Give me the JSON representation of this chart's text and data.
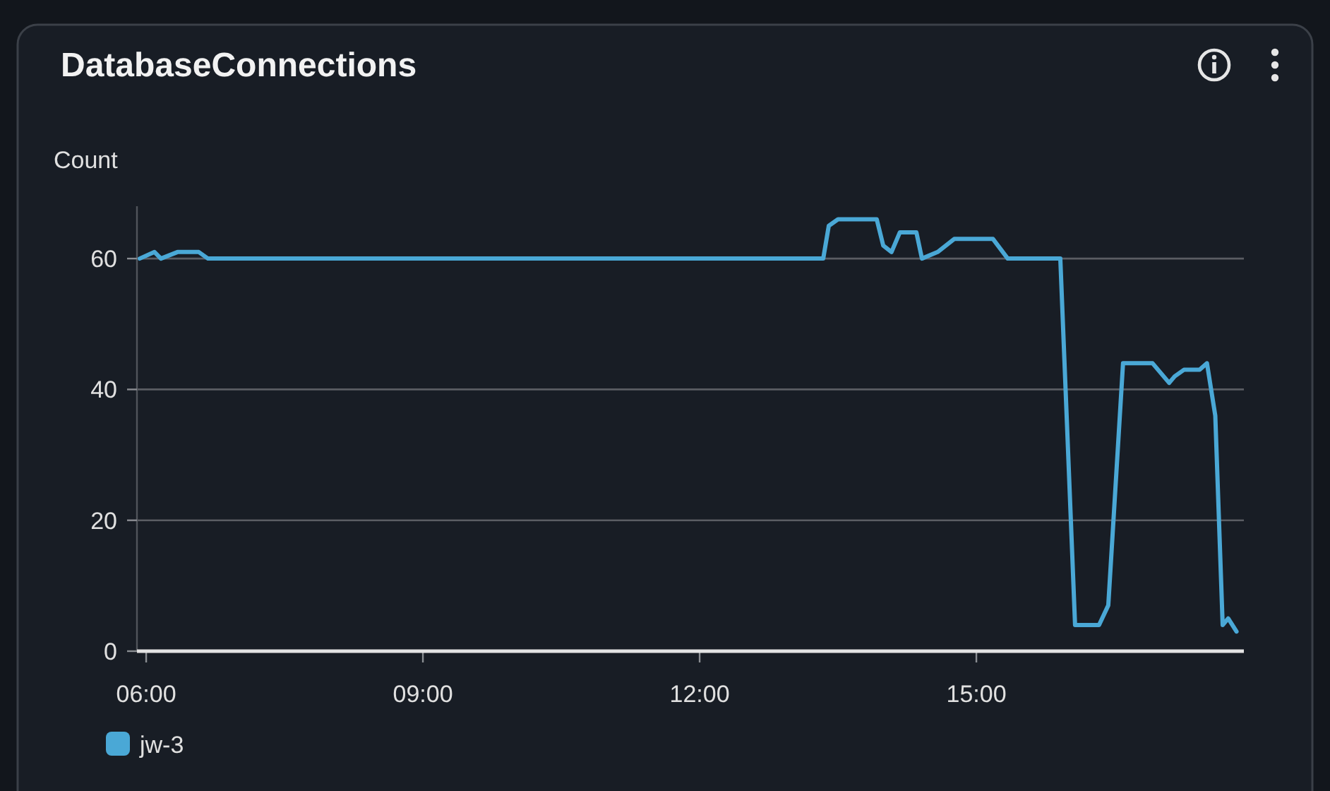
{
  "chart_data": {
    "type": "line",
    "title": "DatabaseConnections",
    "ylabel": "Count",
    "x": [
      5.93,
      6.09,
      6.16,
      6.34,
      6.57,
      6.67,
      13.34,
      13.4,
      13.5,
      13.92,
      13.99,
      14.08,
      14.17,
      14.35,
      14.41,
      14.58,
      14.67,
      14.76,
      15.18,
      15.34,
      15.91,
      16.07,
      16.33,
      16.43,
      16.59,
      16.91,
      17.09,
      17.15,
      17.25,
      17.42,
      17.5,
      17.59,
      17.67,
      17.73,
      17.82
    ],
    "series": [
      {
        "name": "jw-3",
        "color": "#4aa8d6",
        "values": [
          60,
          61,
          60,
          61,
          61,
          60,
          60,
          65,
          66,
          66,
          62,
          61,
          64,
          64,
          60,
          61,
          62,
          63,
          63,
          60,
          60,
          4,
          4,
          7,
          44,
          44,
          41,
          42,
          43,
          43,
          44,
          36,
          4,
          5,
          3
        ]
      }
    ],
    "xlim": [
      5.9,
      17.9
    ],
    "ylim": [
      0,
      68
    ],
    "xticks": [
      {
        "value": 6,
        "label": "06:00"
      },
      {
        "value": 9,
        "label": "09:00"
      },
      {
        "value": 12,
        "label": "12:00"
      },
      {
        "value": 15,
        "label": "15:00"
      }
    ],
    "yticks": [
      0,
      20,
      40,
      60
    ],
    "grid": "y",
    "legend": "bottom left"
  }
}
